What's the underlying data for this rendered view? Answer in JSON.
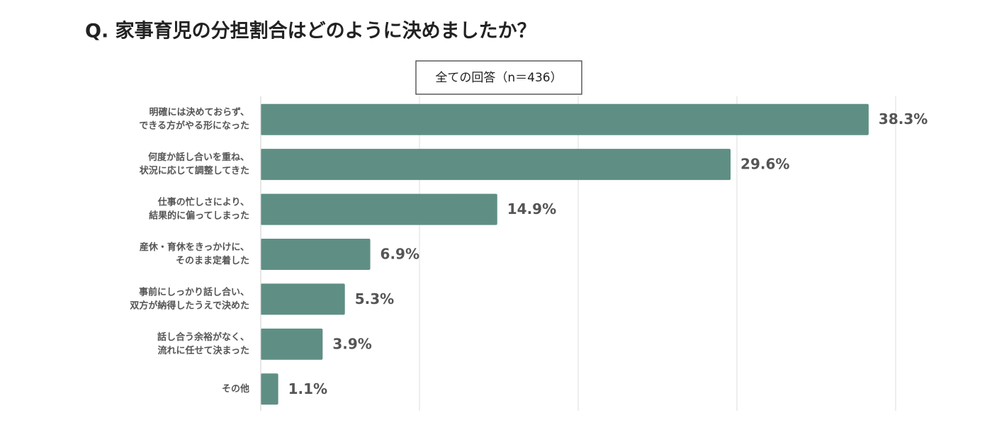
{
  "chart_data": {
    "type": "bar",
    "orientation": "horizontal",
    "title": "Q. 家事育児の分担割合はどのように決めましたか？",
    "subtitle": "全ての回答（n＝436）",
    "categories": [
      [
        "明確には決めておらず、",
        "できる方がやる形になった"
      ],
      [
        "何度か話し合いを重ね、",
        "状況に応じて調整してきた"
      ],
      [
        "仕事の忙しさにより、",
        "結果的に偏ってしまった"
      ],
      [
        "産休・育休をきっかけに、",
        "そのまま定着した"
      ],
      [
        "事前にしっかり話し合い、",
        "双方が納得したうえで決めた"
      ],
      [
        "話し合う余裕がなく、",
        "流れに任せて決まった"
      ],
      [
        "その他"
      ]
    ],
    "values": [
      38.3,
      29.6,
      14.9,
      6.9,
      5.3,
      3.9,
      1.1
    ],
    "value_labels": [
      "38.3%",
      "29.6%",
      "14.9%",
      "6.9%",
      "5.3%",
      "3.9%",
      "1.1%"
    ],
    "color": "#5f8f84",
    "xlim": [
      0,
      40
    ],
    "xticks": [
      0,
      10,
      20,
      30,
      40
    ],
    "tick_labels": false,
    "grid": true
  }
}
